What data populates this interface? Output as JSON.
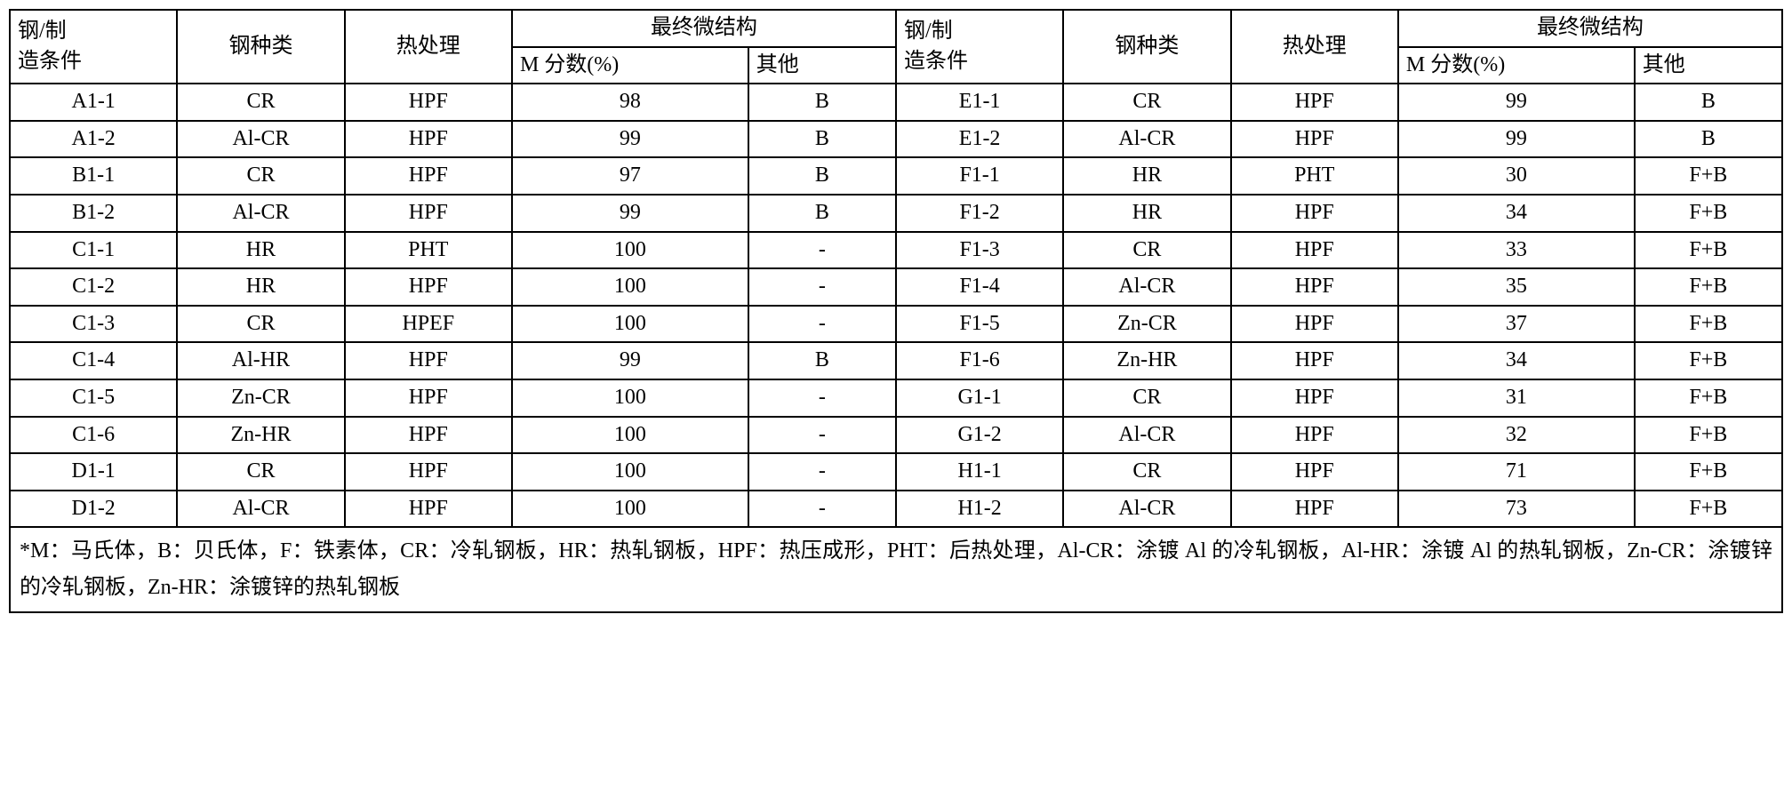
{
  "headers": {
    "cond": "钢/制造条件",
    "type": "钢种类",
    "heat": "热处理",
    "micro": "最终微结构",
    "mfrac": "M 分数(%)",
    "other": "其他"
  },
  "rows": [
    {
      "l": [
        "A1-1",
        "CR",
        "HPF",
        "98",
        "B"
      ],
      "r": [
        "E1-1",
        "CR",
        "HPF",
        "99",
        "B"
      ]
    },
    {
      "l": [
        "A1-2",
        "Al-CR",
        "HPF",
        "99",
        "B"
      ],
      "r": [
        "E1-2",
        "Al-CR",
        "HPF",
        "99",
        "B"
      ]
    },
    {
      "l": [
        "B1-1",
        "CR",
        "HPF",
        "97",
        "B"
      ],
      "r": [
        "F1-1",
        "HR",
        "PHT",
        "30",
        "F+B"
      ]
    },
    {
      "l": [
        "B1-2",
        "Al-CR",
        "HPF",
        "99",
        "B"
      ],
      "r": [
        "F1-2",
        "HR",
        "HPF",
        "34",
        "F+B"
      ]
    },
    {
      "l": [
        "C1-1",
        "HR",
        "PHT",
        "100",
        "-"
      ],
      "r": [
        "F1-3",
        "CR",
        "HPF",
        "33",
        "F+B"
      ]
    },
    {
      "l": [
        "C1-2",
        "HR",
        "HPF",
        "100",
        "-"
      ],
      "r": [
        "F1-4",
        "Al-CR",
        "HPF",
        "35",
        "F+B"
      ]
    },
    {
      "l": [
        "C1-3",
        "CR",
        "HPEF",
        "100",
        "-"
      ],
      "r": [
        "F1-5",
        "Zn-CR",
        "HPF",
        "37",
        "F+B"
      ]
    },
    {
      "l": [
        "C1-4",
        "Al-HR",
        "HPF",
        "99",
        "B"
      ],
      "r": [
        "F1-6",
        "Zn-HR",
        "HPF",
        "34",
        "F+B"
      ]
    },
    {
      "l": [
        "C1-5",
        "Zn-CR",
        "HPF",
        "100",
        "-"
      ],
      "r": [
        "G1-1",
        "CR",
        "HPF",
        "31",
        "F+B"
      ]
    },
    {
      "l": [
        "C1-6",
        "Zn-HR",
        "HPF",
        "100",
        "-"
      ],
      "r": [
        "G1-2",
        "Al-CR",
        "HPF",
        "32",
        "F+B"
      ]
    },
    {
      "l": [
        "D1-1",
        "CR",
        "HPF",
        "100",
        "-"
      ],
      "r": [
        "H1-1",
        "CR",
        "HPF",
        "71",
        "F+B"
      ]
    },
    {
      "l": [
        "D1-2",
        "Al-CR",
        "HPF",
        "100",
        "-"
      ],
      "r": [
        "H1-2",
        "Al-CR",
        "HPF",
        "73",
        "F+B"
      ]
    }
  ],
  "footer": "*M：马氏体，B：贝氏体，F：铁素体，CR：冷轧钢板，HR：热轧钢板，HPF：热压成形，PHT：后热处理，Al-CR：涂镀 Al 的冷轧钢板，Al-HR：涂镀 Al 的热轧钢板，Zn-CR：涂镀锌的冷轧钢板，Zn-HR：涂镀锌的热轧钢板",
  "style": {
    "border_color": "#000000",
    "background_color": "#ffffff",
    "text_color": "#000000",
    "font_size": 24,
    "border_width": 2,
    "column_widths_pct": [
      8.5,
      8.5,
      8.5,
      12,
      7.5,
      8.5,
      8.5,
      8.5,
      12,
      7.5
    ]
  }
}
